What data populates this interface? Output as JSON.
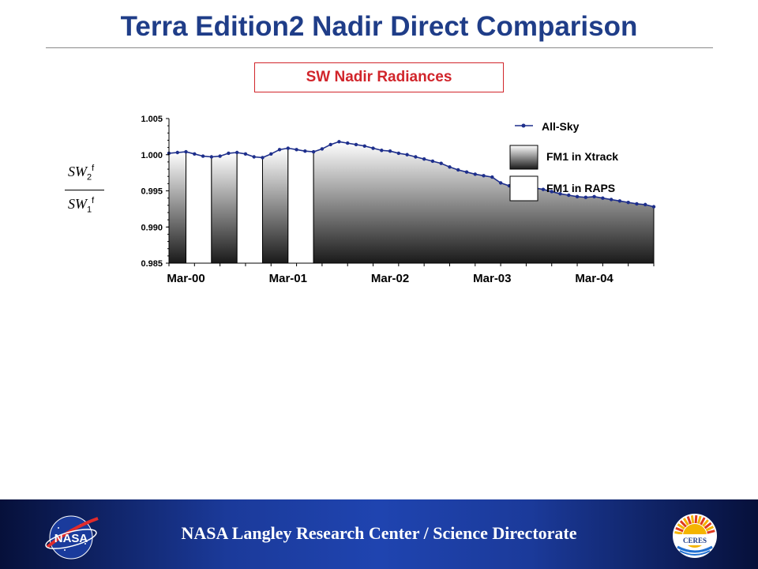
{
  "slide": {
    "title": "Terra Edition2 Nadir Direct Comparison",
    "subtitle": "SW Nadir Radiances",
    "ylabel_numerator": "SW",
    "ylabel_numerator_sub": "2",
    "ylabel_numerator_sup": "f",
    "ylabel_denominator": "SW",
    "ylabel_denominator_sub": "1",
    "ylabel_denominator_sup": "f"
  },
  "footer": {
    "text": "NASA Langley Research Center / Science Directorate",
    "left_logo": "NASA",
    "right_logo": "CERES"
  },
  "colors": {
    "title": "#1f3d88",
    "subtitle": "#d1252b",
    "series": "#1e2f8c",
    "fill_dark": "#2a2a2a",
    "fill_light": "#ffffff"
  },
  "chart_data": {
    "type": "area",
    "title": "SW Nadir Radiances",
    "xlabel": "",
    "ylabel": "SW2f / SW1f",
    "ylim": [
      0.985,
      1.005
    ],
    "yticks": [
      0.985,
      0.99,
      0.995,
      1.0,
      1.005
    ],
    "ytick_labels": [
      "0.985",
      "0.990",
      "0.995",
      "1.000",
      "1.005"
    ],
    "xlim": [
      0,
      57
    ],
    "xticks": [
      2,
      14,
      26,
      38,
      50
    ],
    "xtick_labels": [
      "Mar-00",
      "Mar-01",
      "Mar-02",
      "Mar-03",
      "Mar-04"
    ],
    "grid": false,
    "legend_position": "top-right",
    "legend": [
      "All-Sky",
      "FM1 in Xtrack",
      "FM1 in RAPS"
    ],
    "series": [
      {
        "name": "All-Sky",
        "x": [
          0,
          1,
          2,
          3,
          4,
          5,
          6,
          7,
          8,
          9,
          10,
          11,
          12,
          13,
          14,
          15,
          16,
          17,
          18,
          19,
          20,
          21,
          22,
          23,
          24,
          25,
          26,
          27,
          28,
          29,
          30,
          31,
          32,
          33,
          34,
          35,
          36,
          37,
          38,
          39,
          40,
          41,
          42,
          43,
          44,
          45,
          46,
          47,
          48,
          49,
          50,
          51,
          52,
          53,
          54,
          55,
          56,
          57
        ],
        "values": [
          1.0002,
          1.0003,
          1.0004,
          1.0001,
          0.9998,
          0.9997,
          0.9998,
          1.0002,
          1.0003,
          1.0001,
          0.9997,
          0.9996,
          1.0001,
          1.0007,
          1.0009,
          1.0007,
          1.0005,
          1.0004,
          1.0008,
          1.0014,
          1.0018,
          1.0016,
          1.0014,
          1.0012,
          1.0009,
          1.0006,
          1.0005,
          1.0002,
          1.0,
          0.9997,
          0.9994,
          0.9991,
          0.9988,
          0.9983,
          0.9979,
          0.9976,
          0.9973,
          0.9971,
          0.9969,
          0.9961,
          0.9957,
          0.9956,
          0.9955,
          0.9954,
          0.9952,
          0.9949,
          0.9946,
          0.9944,
          0.9942,
          0.9941,
          0.9942,
          0.994,
          0.9938,
          0.9936,
          0.9934,
          0.9932,
          0.9931,
          0.9928
        ]
      }
    ],
    "periods": [
      {
        "name": "FM1 in Xtrack",
        "x": [
          0,
          2
        ]
      },
      {
        "name": "FM1 in RAPS",
        "x": [
          2,
          5
        ]
      },
      {
        "name": "FM1 in Xtrack",
        "x": [
          5,
          8
        ]
      },
      {
        "name": "FM1 in RAPS",
        "x": [
          8,
          11
        ]
      },
      {
        "name": "FM1 in Xtrack",
        "x": [
          11,
          14
        ]
      },
      {
        "name": "FM1 in RAPS",
        "x": [
          14,
          17
        ]
      },
      {
        "name": "FM1 in Xtrack",
        "x": [
          17,
          57
        ]
      }
    ]
  }
}
